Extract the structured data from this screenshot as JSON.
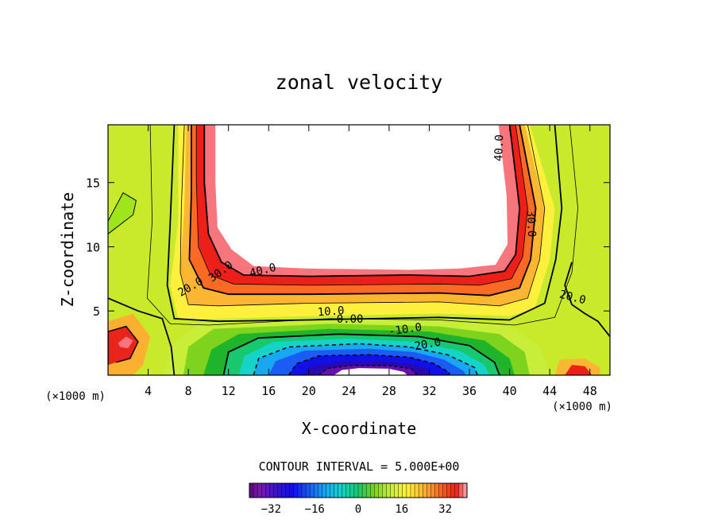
{
  "chart_data": {
    "type": "heatmap",
    "subtype": "filled-contour",
    "title": "zonal velocity",
    "xlabel": "X-coordinate",
    "ylabel": "Z-coordinate",
    "x_unit_left": "(×1000 m)",
    "x_unit_right": "(×1000 m)",
    "xlim": [
      0,
      50
    ],
    "ylim": [
      0,
      19.5
    ],
    "x_ticks": [
      4,
      8,
      12,
      16,
      20,
      24,
      28,
      32,
      36,
      40,
      44,
      48
    ],
    "x_tick_labels": [
      "4",
      "8",
      "12",
      "16",
      "20",
      "24",
      "28",
      "32",
      "36",
      "40",
      "44",
      "48"
    ],
    "y_ticks": [
      5,
      10,
      15
    ],
    "y_tick_labels": [
      "5",
      "10",
      "15"
    ],
    "contour_interval_text": "CONTOUR INTERVAL = 5.000E+00",
    "color_range": [
      -40,
      40
    ],
    "colorbar_ticks": [
      -32,
      -16,
      0,
      16,
      32
    ],
    "colorbar_tick_labels": [
      "−32",
      "−16",
      "0",
      "16",
      "32"
    ],
    "features": [
      {
        "kind": "max",
        "x_range": [
          10,
          40
        ],
        "z_range": [
          7.5,
          19.5
        ],
        "value_above": 40
      },
      {
        "kind": "min",
        "x": 26,
        "z": 0.5,
        "value_below": -32
      }
    ],
    "contour_labels": [
      {
        "text": "40.0",
        "x": 38.9,
        "z": 17.7,
        "angle": 88
      },
      {
        "text": "30.0",
        "x": 42.2,
        "z": 11.8,
        "angle": -88
      },
      {
        "text": "40.0",
        "x": 15.4,
        "z": 8.2,
        "angle": 14
      },
      {
        "text": "30.0",
        "x": 11.2,
        "z": 8.1,
        "angle": 36
      },
      {
        "text": "20.0",
        "x": 8.2,
        "z": 6.9,
        "angle": 30
      },
      {
        "text": "20.0",
        "x": 46.3,
        "z": 6.1,
        "angle": -14
      },
      {
        "text": "10.0",
        "x": 22.2,
        "z": 5.0,
        "angle": 4
      },
      {
        "text": "0.00",
        "x": 24.1,
        "z": 4.4,
        "angle": 0
      },
      {
        "text": "-10.0",
        "x": 29.6,
        "z": 3.6,
        "angle": 8
      },
      {
        "text": "-20.0",
        "x": 31.5,
        "z": 2.4,
        "angle": 10
      }
    ],
    "colors": {
      "max": "#ffffff",
      "min": "#ffffff"
    }
  }
}
